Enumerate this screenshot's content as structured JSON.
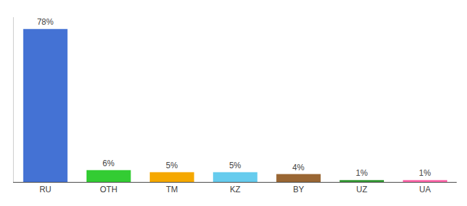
{
  "chart_data": {
    "type": "bar",
    "categories": [
      "RU",
      "OTH",
      "TM",
      "KZ",
      "BY",
      "UZ",
      "UA"
    ],
    "values": [
      78,
      6,
      5,
      5,
      4,
      1,
      1
    ],
    "value_labels": [
      "78%",
      "6%",
      "5%",
      "5%",
      "4%",
      "1%",
      "1%"
    ],
    "colors": [
      "#4472d4",
      "#33cc33",
      "#f5a800",
      "#66ccee",
      "#996633",
      "#339933",
      "#ff66aa"
    ],
    "ylim": [
      0,
      84
    ],
    "grid": false,
    "data_labels": true,
    "tick_labels": "x"
  }
}
